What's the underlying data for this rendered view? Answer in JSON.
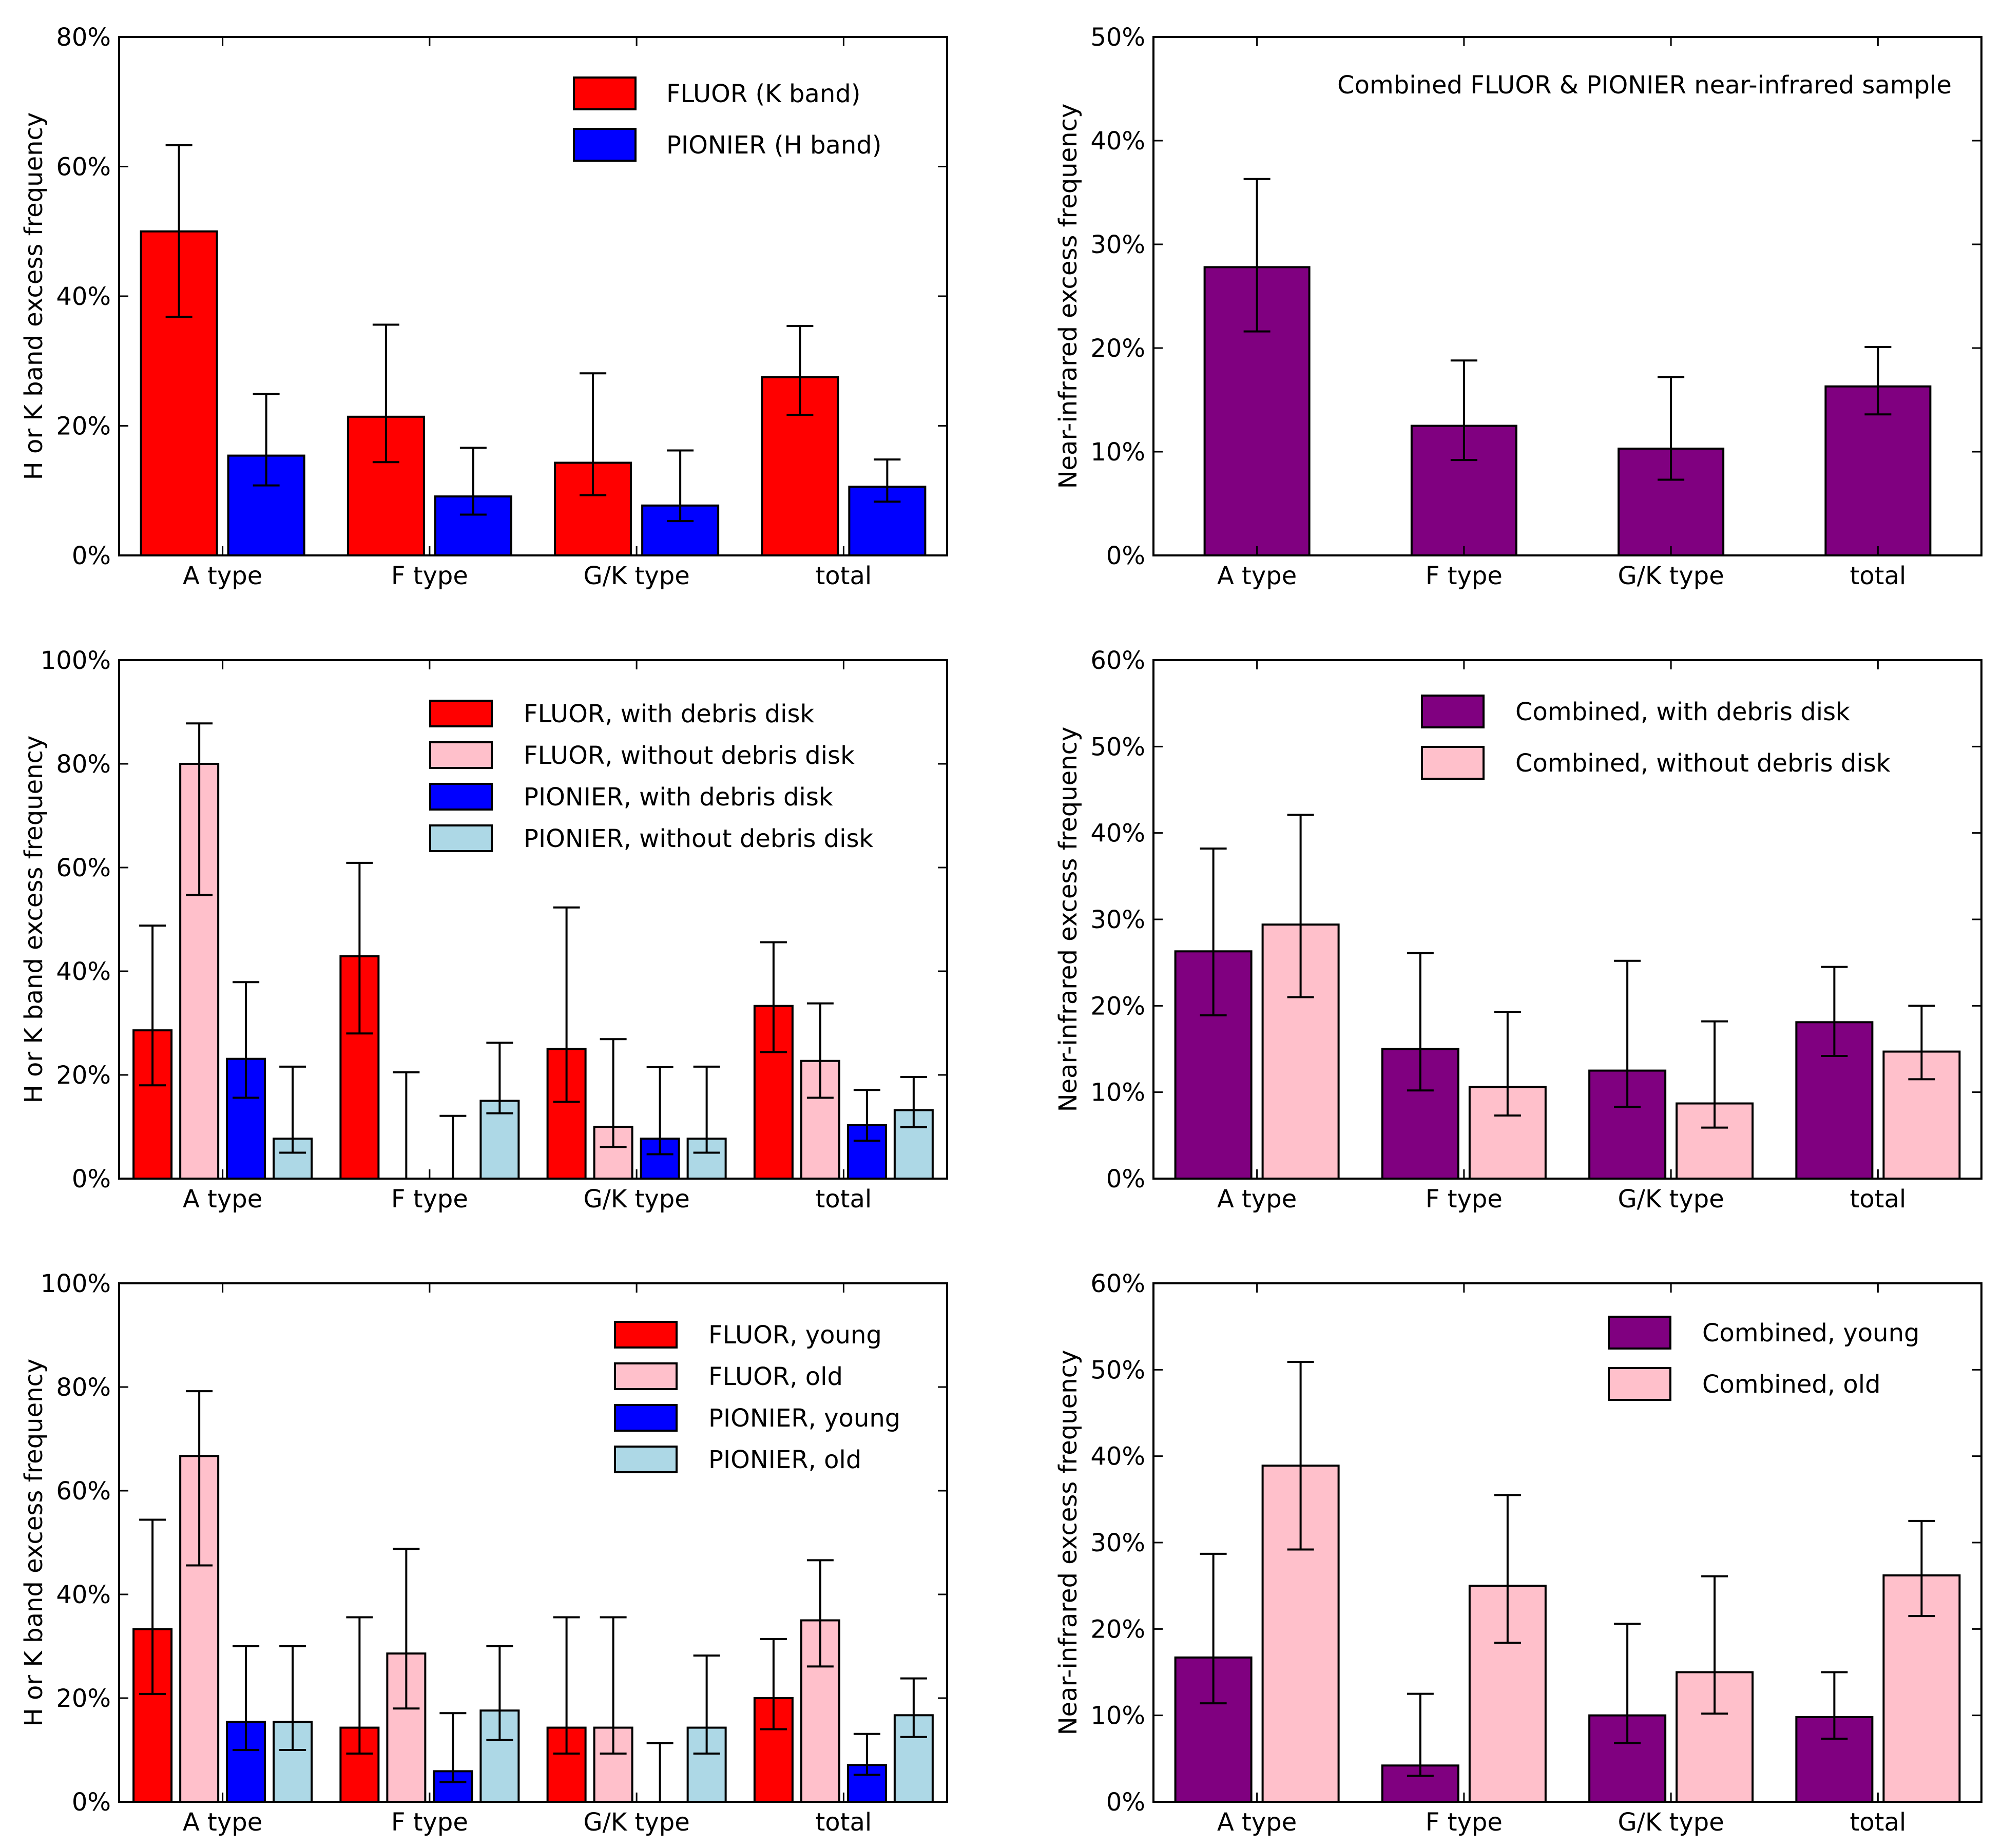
{
  "figure": {
    "background": "#ffffff",
    "frame_color": "#000000"
  },
  "colors": {
    "fluor": "#ff0000",
    "fluor_light": "#ffc0cb",
    "pionier": "#0000ff",
    "pionier_light": "#add8e6",
    "combined": "#800080",
    "combined_light": "#ffc0cb"
  },
  "chart_data": [
    {
      "id": "left-1",
      "type": "bar",
      "title": "",
      "xlabel": "",
      "ylabel": "H or K band excess frequency",
      "categories": [
        "A type",
        "F type",
        "G/K type",
        "total"
      ],
      "ylim": [
        0,
        80
      ],
      "yticks": [
        0,
        20,
        40,
        60,
        80
      ],
      "ytick_labels": [
        "0%",
        "20%",
        "40%",
        "60%",
        "80%"
      ],
      "legend": {
        "position": "top-right"
      },
      "annotation": "",
      "series": [
        {
          "name": "FLUOR (K band)",
          "color": "#ff0000",
          "values": [
            50,
            21.4,
            14.3,
            27.5
          ],
          "err_low": [
            36.8,
            14.4,
            9.3,
            21.7
          ],
          "err_high": [
            63.3,
            35.6,
            28.1,
            35.4
          ]
        },
        {
          "name": "PIONIER (H band)",
          "color": "#0000ff",
          "values": [
            15.4,
            9.1,
            7.7,
            10.6
          ],
          "err_low": [
            10.8,
            6.3,
            5.3,
            8.3
          ],
          "err_high": [
            24.9,
            16.6,
            16.2,
            14.8
          ]
        }
      ]
    },
    {
      "id": "right-1",
      "type": "bar",
      "title": "",
      "xlabel": "",
      "ylabel": "Near-infrared excess frequency",
      "categories": [
        "A type",
        "F type",
        "G/K type",
        "total"
      ],
      "ylim": [
        0,
        50
      ],
      "yticks": [
        0,
        10,
        20,
        30,
        40,
        50
      ],
      "ytick_labels": [
        "0%",
        "10%",
        "20%",
        "30%",
        "40%",
        "50%"
      ],
      "legend": null,
      "annotation": "Combined FLUOR & PIONIER near-infrared sample",
      "series": [
        {
          "name": "",
          "color": "#800080",
          "values": [
            27.8,
            12.5,
            10.3,
            16.3
          ],
          "err_low": [
            21.6,
            9.2,
            7.3,
            13.6
          ],
          "err_high": [
            36.3,
            18.8,
            17.2,
            20.1
          ]
        }
      ]
    },
    {
      "id": "left-2",
      "type": "bar",
      "title": "",
      "xlabel": "",
      "ylabel": "H or K band excess frequency",
      "categories": [
        "A type",
        "F type",
        "G/K type",
        "total"
      ],
      "ylim": [
        0,
        100
      ],
      "yticks": [
        0,
        20,
        40,
        60,
        80,
        100
      ],
      "ytick_labels": [
        "0%",
        "20%",
        "40%",
        "60%",
        "80%",
        "100%"
      ],
      "legend": {
        "position": "top-right"
      },
      "annotation": "",
      "series": [
        {
          "name": "FLUOR, with debris disk",
          "color": "#ff0000",
          "values": [
            28.6,
            42.9,
            25,
            33.3
          ],
          "err_low": [
            18,
            28,
            14.8,
            24.4
          ],
          "err_high": [
            48.8,
            60.9,
            52.3,
            45.6
          ]
        },
        {
          "name": "FLUOR, without debris disk",
          "color": "#ffc0cb",
          "values": [
            80,
            0,
            10,
            22.7
          ],
          "err_low": [
            54.7,
            0,
            6.1,
            15.6
          ],
          "err_high": [
            87.8,
            20.5,
            26.9,
            33.8
          ]
        },
        {
          "name": "PIONIER, with debris disk",
          "color": "#0000ff",
          "values": [
            23.1,
            0,
            7.7,
            10.3
          ],
          "err_low": [
            15.6,
            0,
            4.7,
            7.3
          ],
          "err_high": [
            37.9,
            12.1,
            21.5,
            17.1
          ]
        },
        {
          "name": "PIONIER, without debris disk",
          "color": "#add8e6",
          "values": [
            7.7,
            15,
            7.7,
            13.2
          ],
          "err_low": [
            5,
            12.6,
            5,
            9.9
          ],
          "err_high": [
            21.6,
            26.2,
            21.6,
            19.6
          ]
        }
      ]
    },
    {
      "id": "right-2",
      "type": "bar",
      "title": "",
      "xlabel": "",
      "ylabel": "Near-infrared excess frequency",
      "categories": [
        "A type",
        "F type",
        "G/K type",
        "total"
      ],
      "ylim": [
        0,
        60
      ],
      "yticks": [
        0,
        10,
        20,
        30,
        40,
        50,
        60
      ],
      "ytick_labels": [
        "0%",
        "10%",
        "20%",
        "30%",
        "40%",
        "50%",
        "60%"
      ],
      "legend": {
        "position": "top-right"
      },
      "annotation": "",
      "series": [
        {
          "name": "Combined, with debris disk",
          "color": "#800080",
          "values": [
            26.3,
            15,
            12.5,
            18.1
          ],
          "err_low": [
            18.9,
            10.2,
            8.3,
            14.2
          ],
          "err_high": [
            38.2,
            26.1,
            25.2,
            24.5
          ]
        },
        {
          "name": "Combined, without debris disk",
          "color": "#ffc0cb",
          "values": [
            29.4,
            10.6,
            8.7,
            14.7
          ],
          "err_low": [
            21,
            7.3,
            5.9,
            11.5
          ],
          "err_high": [
            42.1,
            19.3,
            18.2,
            20
          ]
        }
      ]
    },
    {
      "id": "left-3",
      "type": "bar",
      "title": "",
      "xlabel": "",
      "ylabel": "H or K band excess frequency",
      "categories": [
        "A type",
        "F type",
        "G/K type",
        "total"
      ],
      "ylim": [
        0,
        100
      ],
      "yticks": [
        0,
        20,
        40,
        60,
        80,
        100
      ],
      "ytick_labels": [
        "0%",
        "20%",
        "40%",
        "60%",
        "80%",
        "100%"
      ],
      "legend": {
        "position": "top-right"
      },
      "annotation": "",
      "series": [
        {
          "name": "FLUOR, young",
          "color": "#ff0000",
          "values": [
            33.3,
            14.3,
            14.3,
            20
          ],
          "err_low": [
            20.8,
            9.3,
            9.3,
            14
          ],
          "err_high": [
            54.4,
            35.6,
            35.6,
            31.4
          ]
        },
        {
          "name": "FLUOR, old",
          "color": "#ffc0cb",
          "values": [
            66.7,
            28.6,
            14.3,
            35
          ],
          "err_low": [
            45.6,
            18,
            9.3,
            26.1
          ],
          "err_high": [
            79.2,
            48.8,
            35.6,
            46.6
          ]
        },
        {
          "name": "PIONIER, young",
          "color": "#0000ff",
          "values": [
            15.4,
            5.9,
            0,
            7.1
          ],
          "err_low": [
            10,
            3.8,
            0,
            5.2
          ],
          "err_high": [
            30,
            17.1,
            11.3,
            13.1
          ]
        },
        {
          "name": "PIONIER, old",
          "color": "#add8e6",
          "values": [
            15.4,
            17.6,
            14.3,
            16.7
          ],
          "err_low": [
            10,
            11.9,
            9.3,
            12.5
          ],
          "err_high": [
            30,
            30,
            28.2,
            23.8
          ]
        }
      ]
    },
    {
      "id": "right-3",
      "type": "bar",
      "title": "",
      "xlabel": "",
      "ylabel": "Near-infrared excess frequency",
      "categories": [
        "A type",
        "F type",
        "G/K type",
        "total"
      ],
      "ylim": [
        0,
        60
      ],
      "yticks": [
        0,
        10,
        20,
        30,
        40,
        50,
        60
      ],
      "ytick_labels": [
        "0%",
        "10%",
        "20%",
        "30%",
        "40%",
        "50%",
        "60%"
      ],
      "legend": {
        "position": "top-right"
      },
      "annotation": "",
      "series": [
        {
          "name": "Combined, young",
          "color": "#800080",
          "values": [
            16.7,
            4.2,
            10,
            9.8
          ],
          "err_low": [
            11.4,
            3,
            6.8,
            7.3
          ],
          "err_high": [
            28.7,
            12.5,
            20.6,
            15
          ]
        },
        {
          "name": "Combined, old",
          "color": "#ffc0cb",
          "values": [
            38.9,
            25,
            15,
            26.2
          ],
          "err_low": [
            29.2,
            18.4,
            10.2,
            21.5
          ],
          "err_high": [
            50.9,
            35.5,
            26.1,
            32.5
          ]
        }
      ]
    }
  ]
}
